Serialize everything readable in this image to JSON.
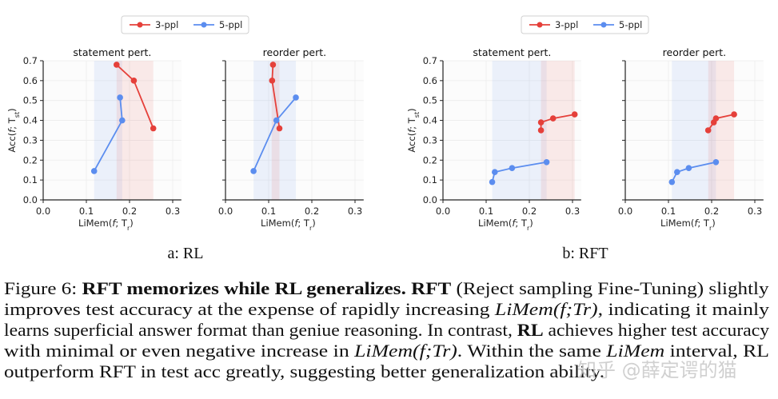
{
  "legends": [
    {
      "items": [
        {
          "name": "3-ppl",
          "color": "#e5403a"
        },
        {
          "name": "5-ppl",
          "color": "#5b8def"
        }
      ]
    },
    {
      "items": [
        {
          "name": "3-ppl",
          "color": "#e5403a"
        },
        {
          "name": "5-ppl",
          "color": "#5b8def"
        }
      ]
    }
  ],
  "subcaptions": [
    "a: RL",
    "b: RFT"
  ],
  "chart_data": [
    {
      "type": "line",
      "group": "a: RL",
      "title": "statement pert.",
      "xlabel": "LiMem(f; T_r)",
      "ylabel": "Acc(f; T_st)",
      "xlim": [
        0,
        0.32
      ],
      "ylim": [
        0,
        0.7
      ],
      "grid": true,
      "xticks": [
        "0.0",
        "0.1",
        "0.2",
        "0.3"
      ],
      "yticks": [
        "0.0",
        "0.1",
        "0.2",
        "0.3",
        "0.4",
        "0.5",
        "0.6",
        "0.7"
      ],
      "show_ytick_labels": true,
      "series": [
        {
          "name": "3-ppl",
          "color": "#e5403a",
          "band": [
            0.17,
            0.255
          ],
          "x": [
            0.17,
            0.21,
            0.255
          ],
          "y": [
            0.68,
            0.6,
            0.36
          ]
        },
        {
          "name": "5-ppl",
          "color": "#5b8def",
          "band": [
            0.118,
            0.183
          ],
          "x": [
            0.118,
            0.183,
            0.178
          ],
          "y": [
            0.145,
            0.4,
            0.515
          ]
        }
      ]
    },
    {
      "type": "line",
      "group": "a: RL",
      "title": "reorder pert.",
      "xlabel": "LiMem(f; T_r)",
      "ylabel": "",
      "xlim": [
        0,
        0.32
      ],
      "ylim": [
        0,
        0.7
      ],
      "grid": true,
      "xticks": [
        "0.0",
        "0.1",
        "0.2",
        "0.3"
      ],
      "yticks": [
        "0.0",
        "0.1",
        "0.2",
        "0.3",
        "0.4",
        "0.5",
        "0.6",
        "0.7"
      ],
      "show_ytick_labels": false,
      "series": [
        {
          "name": "3-ppl",
          "color": "#e5403a",
          "band": [
            0.107,
            0.125
          ],
          "x": [
            0.11,
            0.108,
            0.125
          ],
          "y": [
            0.68,
            0.6,
            0.36
          ]
        },
        {
          "name": "5-ppl",
          "color": "#5b8def",
          "band": [
            0.065,
            0.163
          ],
          "x": [
            0.065,
            0.118,
            0.163
          ],
          "y": [
            0.145,
            0.4,
            0.515
          ]
        }
      ]
    },
    {
      "type": "line",
      "group": "b: RFT",
      "title": "statement pert.",
      "xlabel": "LiMem(f; T_r)",
      "ylabel": "Acc(f; T_st)",
      "xlim": [
        0,
        0.32
      ],
      "ylim": [
        0,
        0.7
      ],
      "grid": true,
      "xticks": [
        "0.0",
        "0.1",
        "0.2",
        "0.3"
      ],
      "yticks": [
        "0.0",
        "0.1",
        "0.2",
        "0.3",
        "0.4",
        "0.5",
        "0.6",
        "0.7"
      ],
      "show_ytick_labels": true,
      "series": [
        {
          "name": "3-ppl",
          "color": "#e5403a",
          "band": [
            0.227,
            0.305
          ],
          "x": [
            0.227,
            0.227,
            0.255,
            0.305
          ],
          "y": [
            0.35,
            0.39,
            0.41,
            0.43
          ]
        },
        {
          "name": "5-ppl",
          "color": "#5b8def",
          "band": [
            0.114,
            0.24
          ],
          "x": [
            0.114,
            0.12,
            0.16,
            0.24
          ],
          "y": [
            0.09,
            0.14,
            0.16,
            0.19
          ]
        }
      ]
    },
    {
      "type": "line",
      "group": "b: RFT",
      "title": "reorder pert.",
      "xlabel": "LiMem(f; T_r)",
      "ylabel": "",
      "xlim": [
        0,
        0.32
      ],
      "ylim": [
        0,
        0.7
      ],
      "grid": true,
      "xticks": [
        "0.0",
        "0.1",
        "0.2",
        "0.3"
      ],
      "yticks": [
        "0.0",
        "0.1",
        "0.2",
        "0.3",
        "0.4",
        "0.5",
        "0.6",
        "0.7"
      ],
      "show_ytick_labels": false,
      "series": [
        {
          "name": "3-ppl",
          "color": "#e5403a",
          "band": [
            0.192,
            0.252
          ],
          "x": [
            0.192,
            0.205,
            0.21,
            0.252
          ],
          "y": [
            0.35,
            0.39,
            0.41,
            0.43
          ]
        },
        {
          "name": "5-ppl",
          "color": "#5b8def",
          "band": [
            0.108,
            0.21
          ],
          "x": [
            0.108,
            0.12,
            0.147,
            0.21
          ],
          "y": [
            0.09,
            0.14,
            0.16,
            0.19
          ]
        }
      ]
    }
  ],
  "caption": {
    "lines": [
      [
        {
          "text": "Figure 6: ",
          "style": "normal"
        },
        {
          "text": "RFT memorizes while RL generalizes.",
          "style": "bold"
        },
        {
          "text": " ",
          "style": "normal"
        },
        {
          "text": "RFT",
          "style": "bold"
        },
        {
          "text": " (Reject sampling Fine-Tuning) slightly",
          "style": "normal"
        }
      ],
      [
        {
          "text": "improves test accuracy at the expense of rapidly increasing ",
          "style": "normal"
        },
        {
          "text": "LiMem(f;Tr)",
          "style": "math"
        },
        {
          "text": ", indicating it mainly",
          "style": "normal"
        }
      ],
      [
        {
          "text": "learns superficial answer format than geniue reasoning. In contrast, ",
          "style": "normal"
        },
        {
          "text": "RL",
          "style": "bold"
        },
        {
          "text": " achieves higher test accuracy",
          "style": "normal"
        }
      ],
      [
        {
          "text": "with minimal or even negative increase in ",
          "style": "normal"
        },
        {
          "text": "LiMem(f;Tr)",
          "style": "math"
        },
        {
          "text": ". Within the same ",
          "style": "normal"
        },
        {
          "text": "LiMem",
          "style": "math"
        },
        {
          "text": " interval, RL",
          "style": "normal"
        }
      ],
      [
        {
          "text": "outperform RFT in test acc greatly, suggesting better generalization ability.",
          "style": "normal"
        }
      ]
    ]
  },
  "watermark": "知乎 @薛定谔的猫"
}
